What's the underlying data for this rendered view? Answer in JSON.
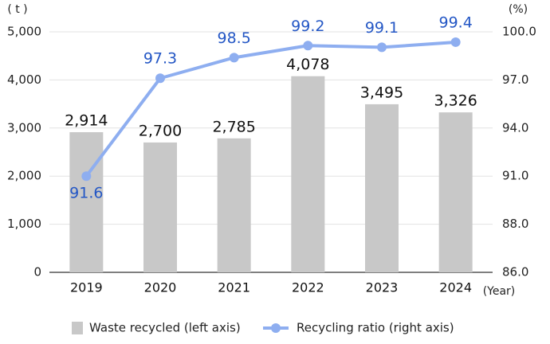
{
  "chart_data": {
    "type": "bar+line",
    "categories": [
      "2019",
      "2020",
      "2021",
      "2022",
      "2023",
      "2024"
    ],
    "left_axis": {
      "unit_label": "( t )",
      "ylim": [
        0,
        5000
      ],
      "ticks": [
        "0",
        "1,000",
        "2,000",
        "3,000",
        "4,000",
        "5,000"
      ]
    },
    "right_axis": {
      "unit_label": "(%)",
      "ylim": [
        86.0,
        100.0
      ],
      "ticks": [
        "86.0",
        "88.0",
        "91.0",
        "94.0",
        "97.0",
        "100.0"
      ]
    },
    "x_unit_label": "(Year)",
    "grid": true,
    "legend_position": "bottom",
    "series": [
      {
        "name": "Waste recycled (left axis)",
        "kind": "bar",
        "axis": "left",
        "color": "#c8c8c8",
        "values": [
          2914,
          2700,
          2785,
          4078,
          3495,
          3326
        ],
        "labels": [
          "2,914",
          "2,700",
          "2,785",
          "4,078",
          "3,495",
          "3,326"
        ]
      },
      {
        "name": "Recycling ratio (right axis)",
        "kind": "line",
        "axis": "right",
        "color": "#8eaef0",
        "label_color": "#2457c5",
        "values": [
          91.6,
          97.3,
          98.5,
          99.2,
          99.1,
          99.4
        ],
        "labels": [
          "91.6",
          "97.3",
          "98.5",
          "99.2",
          "99.1",
          "99.4"
        ]
      }
    ]
  }
}
